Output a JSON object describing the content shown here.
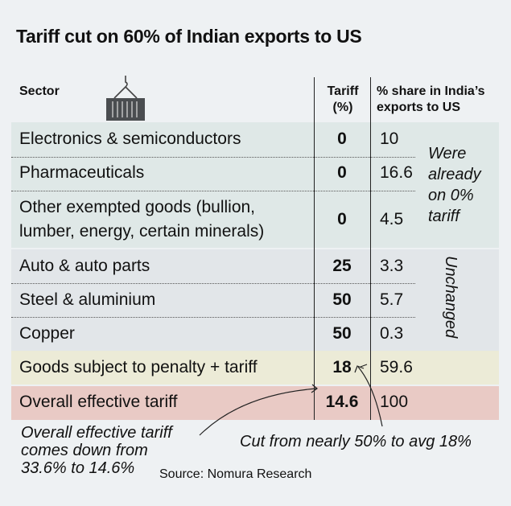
{
  "title": "Tariff cut on 60% of Indian exports to US",
  "headers": {
    "sector": "Sector",
    "tariff": [
      "Tariff",
      "(%)"
    ],
    "share": [
      "% share in India’s",
      "exports to US"
    ]
  },
  "icons": {
    "container": "shipping-container-crane-icon"
  },
  "colors": {
    "exempt_group": "#dfe8e7",
    "unchanged_group": "#e2e6e9",
    "penalty_row": "#ecebd7",
    "overall_row": "#e9cac5"
  },
  "chart_data": {
    "type": "table",
    "columns": [
      "Sector",
      "Tariff (%)",
      "% share in India’s exports to US"
    ],
    "rows": [
      {
        "sector": "Electronics & semiconductors",
        "tariff": "0",
        "share": "10"
      },
      {
        "sector": "Pharmaceuticals",
        "tariff": "0",
        "share": "16.6"
      },
      {
        "sector": [
          "Other exempted goods (bullion,",
          "lumber, energy, certain minerals)"
        ],
        "tariff": "0",
        "share": "4.5"
      },
      {
        "sector": "Auto & auto parts",
        "tariff": "25",
        "share": "3.3"
      },
      {
        "sector": "Steel & aluminium",
        "tariff": "50",
        "share": "5.7"
      },
      {
        "sector": "Copper",
        "tariff": "50",
        "share": "0.3"
      },
      {
        "sector": "Goods subject to penalty + tariff",
        "tariff": "18",
        "share": "59.6"
      },
      {
        "sector": "Overall effective tariff",
        "tariff": "14.6",
        "share": "100"
      }
    ]
  },
  "annotations": {
    "exempt": [
      "Were",
      "already",
      "on 0%",
      "tariff"
    ],
    "unchanged": "Unchanged",
    "overall_note": [
      "Overall effective tariff",
      "comes down from",
      "33.6% to 14.6%"
    ],
    "cut_note": "Cut from nearly 50% to avg 18%"
  },
  "source": "Source: Nomura Research"
}
